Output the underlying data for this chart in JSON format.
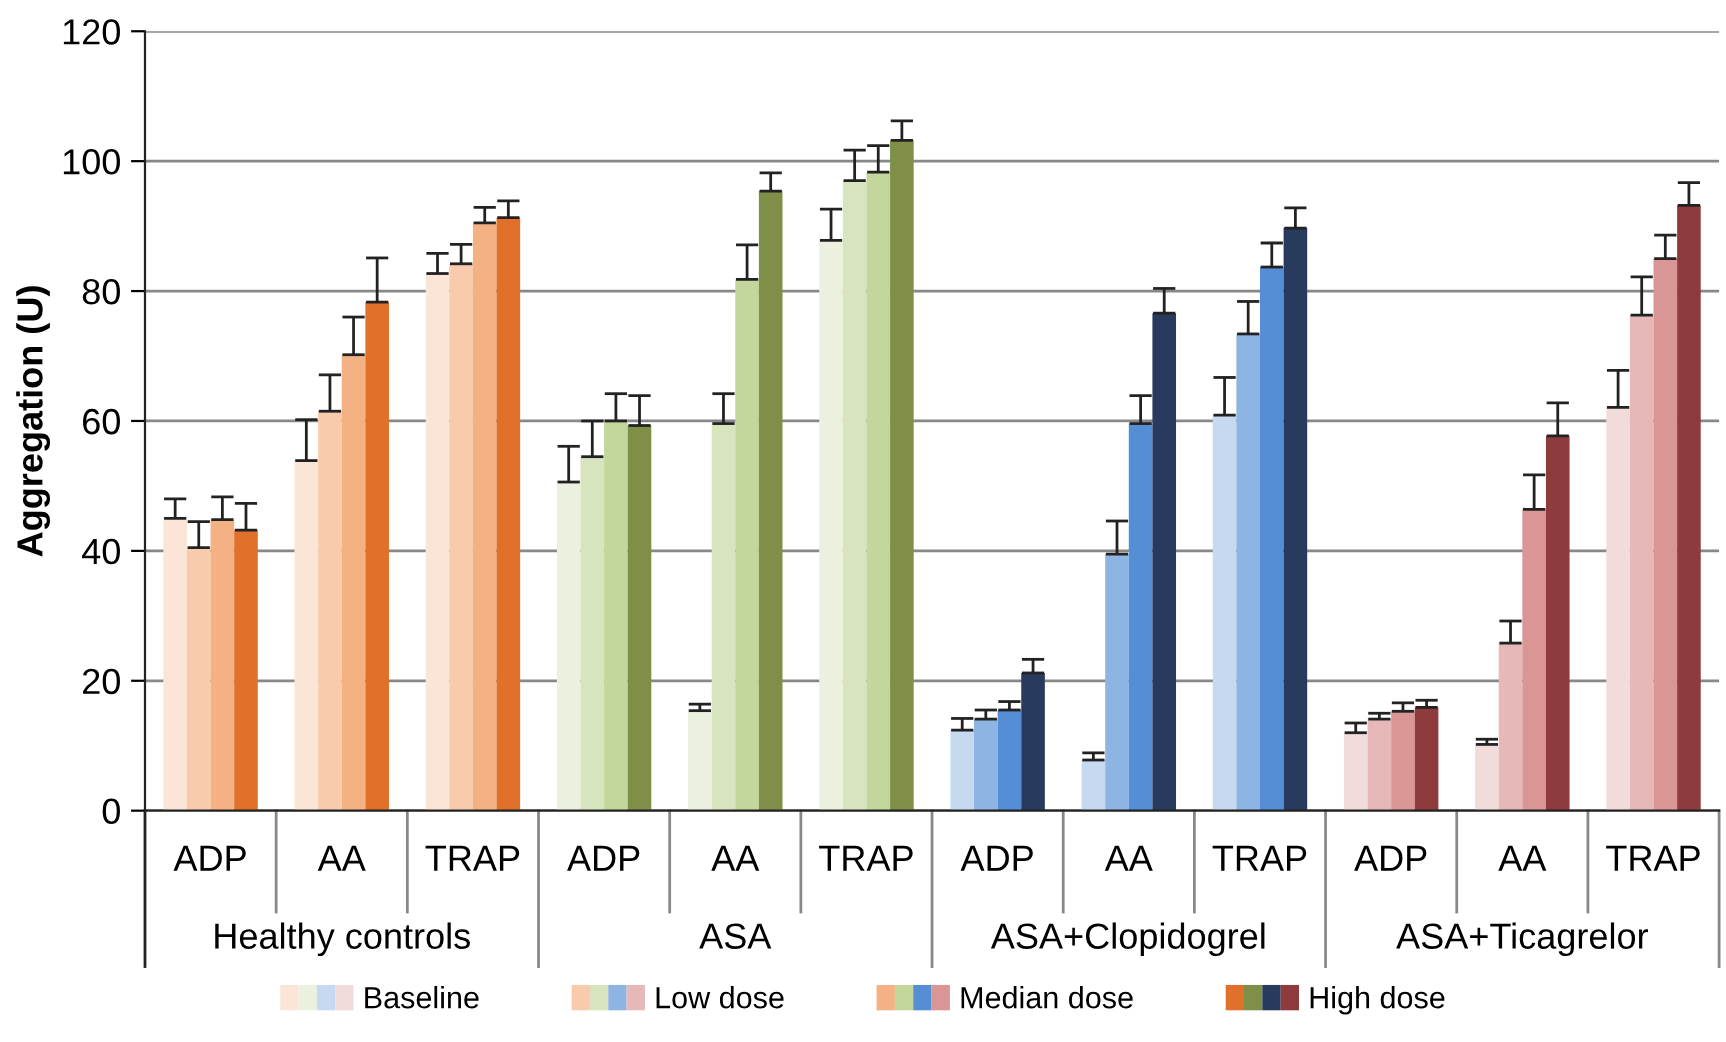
{
  "chart_data": {
    "type": "bar",
    "ylabel": "Aggregation (U)",
    "categories": [
      "ADP",
      "AA",
      "TRAP",
      "ADP",
      "AA",
      "TRAP",
      "ADP",
      "AA",
      "TRAP",
      "ADP",
      "AA",
      "TRAP"
    ],
    "annotations": [
      "Healthy controls",
      "ASA",
      "ASA+Clopidogrel",
      "ASA+Ticagrelor"
    ],
    "ylim": [
      0,
      120
    ],
    "yticks": [
      0,
      20,
      40,
      60,
      80,
      100,
      120
    ],
    "grid": "y",
    "legend": "bottom",
    "series": [
      {
        "name": "Baseline",
        "colors": [
          "#fbe5d6",
          "#fbe5d6",
          "#fbe5d6",
          "#ebf1de",
          "#ebf1de",
          "#ebf1de",
          "#c6d9f1",
          "#c6d9f1",
          "#c6d9f1",
          "#f2dcdb",
          "#f2dcdb",
          "#f2dcdb"
        ],
        "values": [
          45.0,
          53.9,
          82.7,
          50.6,
          15.4,
          87.8,
          12.4,
          7.8,
          60.9,
          12.0,
          10.2,
          62.1
        ],
        "errors": [
          [
            45.0,
            48.0
          ],
          [
            53.9,
            60.2
          ],
          [
            82.7,
            85.8
          ],
          [
            50.6,
            56.1
          ],
          [
            15.4,
            16.4
          ],
          [
            87.8,
            92.6
          ],
          [
            12.4,
            14.2
          ],
          [
            7.8,
            8.9
          ],
          [
            60.9,
            66.7
          ],
          [
            12.0,
            13.5
          ],
          [
            10.2,
            11.0
          ],
          [
            62.1,
            67.8
          ]
        ]
      },
      {
        "name": "Low dose",
        "colors": [
          "#f8cbad",
          "#f8cbad",
          "#f8cbad",
          "#d7e4bd",
          "#d7e4bd",
          "#d7e4bd",
          "#8eb4e3",
          "#8eb4e3",
          "#8eb4e3",
          "#e6b9b8",
          "#e6b9b8",
          "#e6b9b8"
        ],
        "values": [
          40.5,
          61.5,
          84.2,
          54.5,
          59.6,
          97.0,
          14.1,
          39.5,
          73.4,
          14.1,
          25.8,
          76.3
        ],
        "errors": [
          [
            40.5,
            44.5
          ],
          [
            61.5,
            67.1
          ],
          [
            84.2,
            87.2
          ],
          [
            54.5,
            60.0
          ],
          [
            59.6,
            64.2
          ],
          [
            97.0,
            101.7
          ],
          [
            14.1,
            15.5
          ],
          [
            39.5,
            44.6
          ],
          [
            73.4,
            78.4
          ],
          [
            14.1,
            15.0
          ],
          [
            25.8,
            29.2
          ],
          [
            76.3,
            82.2
          ]
        ]
      },
      {
        "name": "Median dose",
        "colors": [
          "#f4b183",
          "#f4b183",
          "#f4b183",
          "#c3d69b",
          "#c3d69b",
          "#c3d69b",
          "#558ed5",
          "#558ed5",
          "#558ed5",
          "#d99694",
          "#d99694",
          "#d99694"
        ],
        "values": [
          44.8,
          70.2,
          90.5,
          60.0,
          81.8,
          98.3,
          15.5,
          59.6,
          83.7,
          15.3,
          46.4,
          85.0
        ],
        "errors": [
          [
            44.8,
            48.3
          ],
          [
            70.2,
            76.0
          ],
          [
            90.5,
            92.9
          ],
          [
            60.0,
            64.2
          ],
          [
            81.8,
            87.1
          ],
          [
            98.3,
            102.4
          ],
          [
            15.5,
            16.8
          ],
          [
            59.6,
            63.9
          ],
          [
            83.7,
            87.4
          ],
          [
            15.3,
            16.6
          ],
          [
            46.4,
            51.7
          ],
          [
            85.0,
            88.6
          ]
        ]
      },
      {
        "name": "High dose",
        "colors": [
          "#e0702a",
          "#e0702a",
          "#e0702a",
          "#7f8f48",
          "#7f8f48",
          "#7f8f48",
          "#283a5e",
          "#283a5e",
          "#283a5e",
          "#8e3b3d",
          "#8e3b3d",
          "#8e3b3d"
        ],
        "values": [
          43.2,
          78.3,
          91.3,
          59.3,
          95.4,
          103.2,
          21.2,
          76.6,
          89.7,
          15.9,
          57.7,
          93.2
        ],
        "errors": [
          [
            43.2,
            47.3
          ],
          [
            78.3,
            85.1
          ],
          [
            91.3,
            93.9
          ],
          [
            59.3,
            63.9
          ],
          [
            95.4,
            98.2
          ],
          [
            103.2,
            106.2
          ],
          [
            21.2,
            23.3
          ],
          [
            76.6,
            80.4
          ],
          [
            89.7,
            92.8
          ],
          [
            15.9,
            17.0
          ],
          [
            57.7,
            62.8
          ],
          [
            93.2,
            96.7
          ]
        ]
      }
    ]
  }
}
